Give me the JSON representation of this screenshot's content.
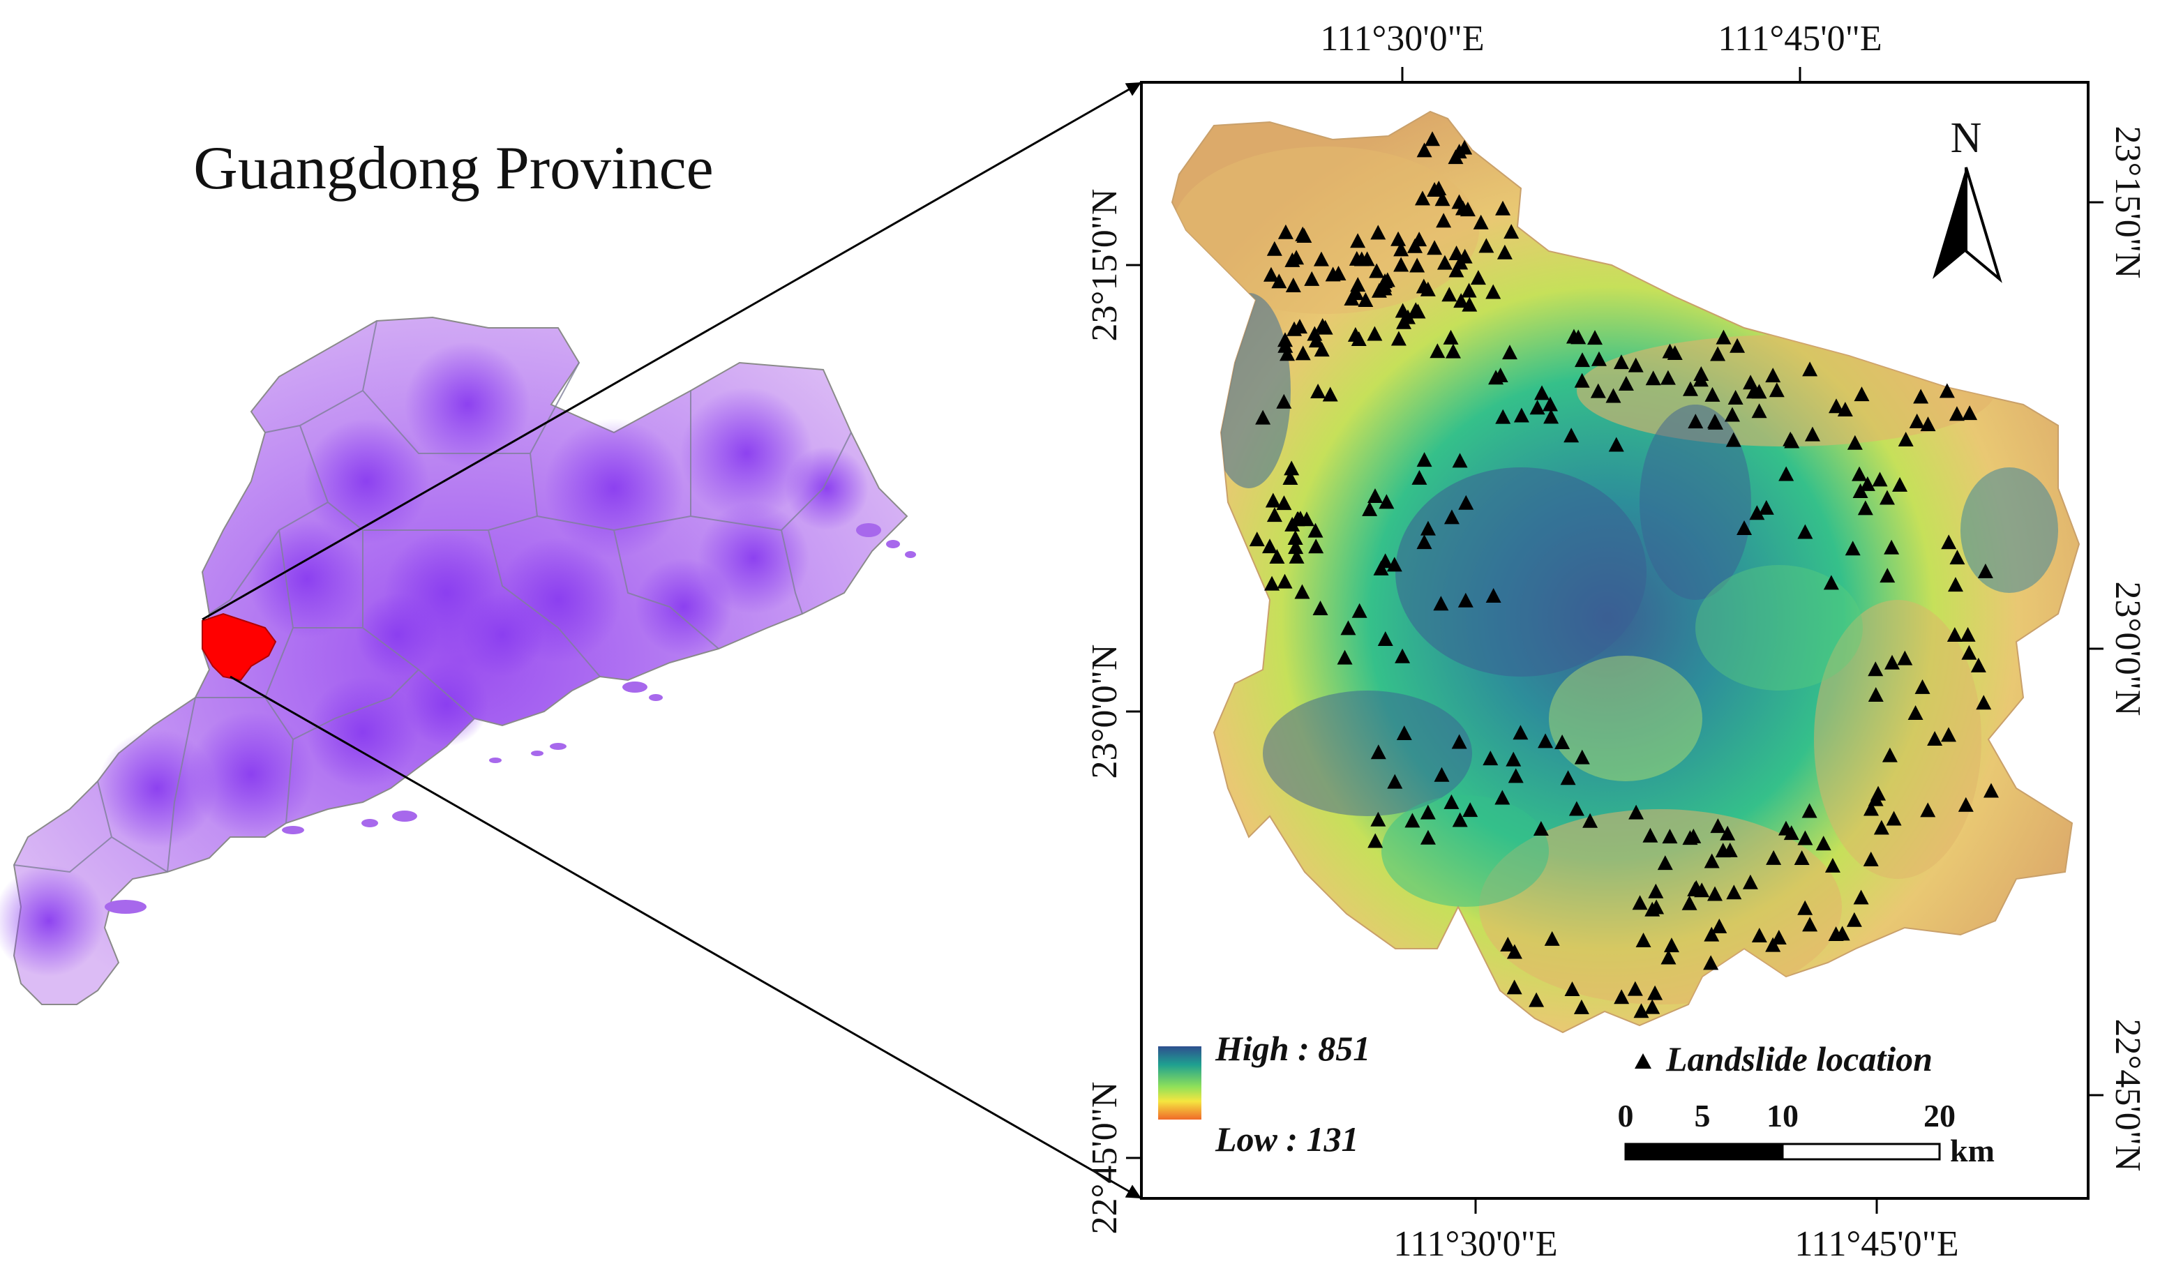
{
  "title": "Guangdong Province",
  "coords": {
    "top": [
      "111°30'0\"E",
      "111°45'0\"E"
    ],
    "bottom": [
      "111°30'0\"E",
      "111°45'0\"E"
    ],
    "left": [
      "23°15'0\"N",
      "23°0'0\"N",
      "22°45'0\"N"
    ],
    "right": [
      "23°15'0\"N",
      "23°0'0\"N",
      "22°45'0\"N"
    ]
  },
  "legend": {
    "high": "High : 851",
    "low": "Low : 131",
    "landslide": "Landslide location"
  },
  "scale": {
    "ticks": [
      "0",
      "5",
      "10",
      "20"
    ],
    "unit": "km"
  },
  "north": "N",
  "colors": {
    "province": "#a768ec",
    "study_area": "#ff0000",
    "elev_high": "#2e5d8a",
    "elev_mid": "#2fb38a",
    "elev_low": "#e0b06a",
    "marker": "#000000"
  }
}
